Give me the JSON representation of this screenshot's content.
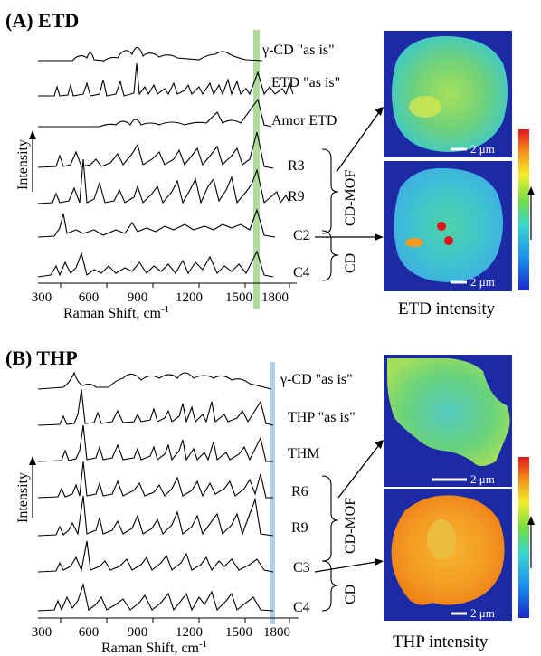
{
  "panels": [
    {
      "id": "A",
      "label": "(A) ETD",
      "x_ticks": [
        "300",
        "600",
        "900",
        "1200",
        "1500",
        "1800"
      ],
      "xlabel": "Raman Shift, cm",
      "xlabel_sup": "-1",
      "ylabel": "Intensity",
      "marker_color": "#9ed58a",
      "spectra": [
        "γ-CD \"as is\"",
        "ETD \"as is\"",
        "Amor ETD",
        "R3",
        "R9",
        "C2",
        "C4"
      ],
      "groups": [
        "CD-MOF",
        "CD"
      ],
      "scale_bar": "2 μm",
      "map_caption": "ETD intensity"
    },
    {
      "id": "B",
      "label": "(B) THP",
      "x_ticks": [
        "300",
        "600",
        "900",
        "1200",
        "1500",
        "1800"
      ],
      "xlabel": "Raman Shift, cm",
      "xlabel_sup": "-1",
      "ylabel": "Intensity",
      "marker_color": "#a9cbe6",
      "spectra": [
        "γ-CD \"as is\"",
        "THP \"as is\"",
        "THM",
        "R6",
        "R9",
        "C3",
        "C4"
      ],
      "groups": [
        "CD-MOF",
        "CD"
      ],
      "scale_bar": "2 μm",
      "map_caption": "THP intensity"
    }
  ]
}
